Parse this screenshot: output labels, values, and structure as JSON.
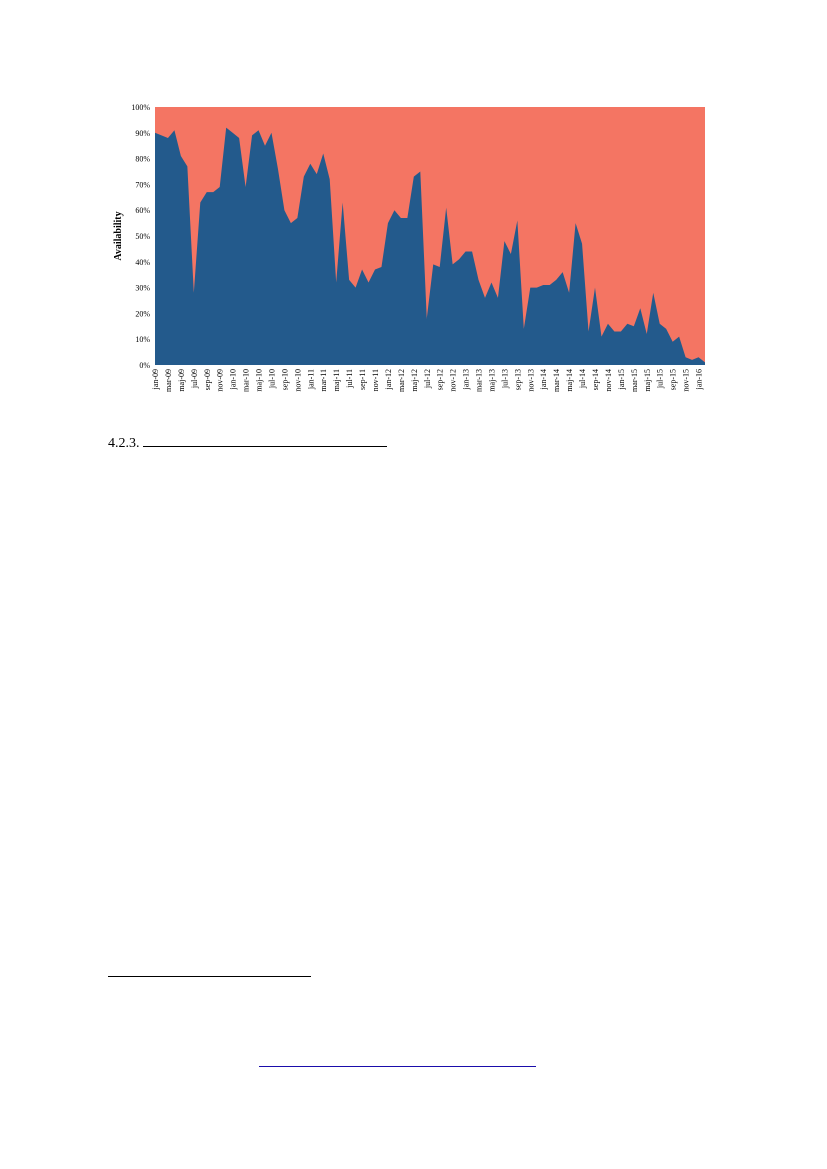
{
  "document": {
    "section_number": "4.2.3."
  },
  "chart_data": {
    "type": "area",
    "title": "",
    "xlabel": "",
    "ylabel": "Availability",
    "ylim": [
      0,
      100
    ],
    "yticks": [
      "0%",
      "10%",
      "20%",
      "30%",
      "40%",
      "50%",
      "60%",
      "70%",
      "80%",
      "90%",
      "100%"
    ],
    "x_tick_labels": [
      "jan-09",
      "mar-09",
      "maj-09",
      "jul-09",
      "sep-09",
      "nov-09",
      "jan-10",
      "mar-10",
      "maj-10",
      "jul-10",
      "sep-10",
      "nov-10",
      "jan-11",
      "mar-11",
      "maj-11",
      "jul-11",
      "sep-11",
      "nov-11",
      "jan-12",
      "mar-12",
      "maj-12",
      "jul-12",
      "sep-12",
      "nov-12",
      "jan-13",
      "mar-13",
      "maj-13",
      "jul-13",
      "sep-13",
      "nov-13",
      "jan-14",
      "mar-14",
      "maj-14",
      "jul-14",
      "sep-14",
      "nov-14",
      "jan-15",
      "mar-15",
      "maj-15",
      "jul-15",
      "sep-15",
      "nov-15",
      "jan-16"
    ],
    "background_color": "#f47563",
    "series": [
      {
        "color": "#235a8c",
        "values": [
          90,
          89,
          88,
          91,
          81,
          77,
          28,
          63,
          67,
          67,
          69,
          92,
          90,
          88,
          69,
          89,
          91,
          85,
          90,
          76,
          60,
          55,
          57,
          73,
          78,
          74,
          82,
          72,
          32,
          63,
          33,
          30,
          37,
          32,
          37,
          38,
          55,
          60,
          57,
          57,
          73,
          75,
          18,
          39,
          38,
          61,
          39,
          41,
          44,
          44,
          33,
          26,
          32,
          26,
          48,
          43,
          56,
          14,
          30,
          30,
          31,
          31,
          33,
          36,
          28,
          55,
          47,
          13,
          30,
          11,
          16,
          13,
          13,
          16,
          15,
          22,
          12,
          28,
          16,
          14,
          9,
          11,
          3,
          2,
          3,
          1
        ]
      }
    ],
    "grid": false,
    "legend": "none"
  }
}
